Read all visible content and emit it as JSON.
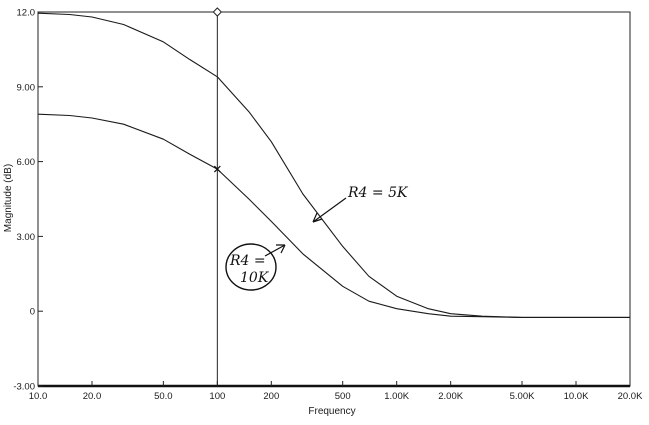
{
  "chart_data": {
    "type": "line",
    "xlabel": "Frequency",
    "ylabel": "Magnitude (dB)",
    "x_scale": "log",
    "xlim": [
      10,
      20000
    ],
    "ylim": [
      -3.0,
      12.0
    ],
    "grid": false,
    "x_ticks": [
      {
        "value": 10,
        "label": "10.0"
      },
      {
        "value": 20,
        "label": "20.0"
      },
      {
        "value": 50,
        "label": "50.0"
      },
      {
        "value": 100,
        "label": "100"
      },
      {
        "value": 200,
        "label": "200"
      },
      {
        "value": 500,
        "label": "500"
      },
      {
        "value": 1000,
        "label": "1.00K"
      },
      {
        "value": 2000,
        "label": "2.00K"
      },
      {
        "value": 5000,
        "label": "5.00K"
      },
      {
        "value": 10000,
        "label": "10.0K"
      },
      {
        "value": 20000,
        "label": "20.0K"
      }
    ],
    "y_ticks": [
      {
        "value": 12,
        "label": "12.0"
      },
      {
        "value": 9,
        "label": "9.00"
      },
      {
        "value": 6,
        "label": "6.00"
      },
      {
        "value": 3,
        "label": "3.00"
      },
      {
        "value": 0,
        "label": "0"
      },
      {
        "value": -3,
        "label": "-3.00"
      }
    ],
    "series": [
      {
        "name": "R4 = 5K",
        "x": [
          10,
          15,
          20,
          30,
          50,
          70,
          100,
          150,
          200,
          300,
          500,
          700,
          1000,
          1500,
          2000,
          3000,
          5000,
          10000,
          20000
        ],
        "y": [
          11.95,
          11.9,
          11.8,
          11.5,
          10.8,
          10.1,
          9.4,
          8.0,
          6.8,
          4.7,
          2.6,
          1.4,
          0.6,
          0.1,
          -0.1,
          -0.2,
          -0.25,
          -0.25,
          -0.25
        ]
      },
      {
        "name": "R4 = 10K",
        "x": [
          10,
          15,
          20,
          30,
          50,
          70,
          100,
          150,
          200,
          300,
          500,
          700,
          1000,
          1500,
          2000,
          3000,
          5000,
          10000,
          20000
        ],
        "y": [
          7.9,
          7.85,
          7.75,
          7.5,
          6.9,
          6.3,
          5.7,
          4.5,
          3.6,
          2.3,
          1.0,
          0.4,
          0.1,
          -0.1,
          -0.2,
          -0.22,
          -0.25,
          -0.25,
          -0.25
        ]
      }
    ],
    "cursor": {
      "x": 100,
      "y": 5.7
    },
    "annotations": [
      {
        "text": "R4 = 5K",
        "target_series": "R4 = 5K"
      },
      {
        "text": "R4 = 10K",
        "target_series": "R4 = 10K"
      }
    ]
  }
}
